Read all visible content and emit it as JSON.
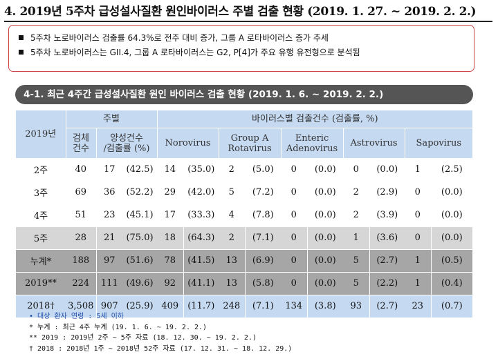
{
  "title": "4. 2019년 5주차 급성설사질환 원인바이러스 주별 검출 현황 (2019. 1. 27. ~ 2019. 2. 2.)",
  "summary": [
    "5주차 노로바이러스 검출률 64.3%로 전주 대비 증가, 그룹 A 로타바이러스 증가 추세",
    "5주차 노로바이러스는 GII.4, 그룹 A 로타바이러스는 G2, P[4]가 주요 유행 유전형으로 분석됨"
  ],
  "section_title": "4-1. 최근 4주간 급성설사질환 원인 바이러스 검출 현황 (2019. 1. 6. ~ 2019. 2. 2.)",
  "table": {
    "head": {
      "year": "2019년",
      "weekly": "주별",
      "virus_group": "바이러스별 검출건수 (검출률, %)",
      "specimens": [
        "검체",
        "건수"
      ],
      "positive": [
        "양성건수",
        "/검출률 (%)"
      ],
      "viruses": [
        [
          "Norovirus"
        ],
        [
          "Group A",
          "Rotavirus"
        ],
        [
          "Enteric",
          "Adenovirus"
        ],
        [
          "Astrovirus"
        ],
        [
          "Sapovirus"
        ]
      ]
    },
    "rows": [
      {
        "label": "2주",
        "style": "white",
        "cells": [
          "40",
          "17",
          "(42.5)",
          "14",
          "(35.0)",
          "2",
          "(5.0)",
          "0",
          "(0.0)",
          "0",
          "(0.0)",
          "1",
          "(2.5)"
        ]
      },
      {
        "label": "3주",
        "style": "white",
        "cells": [
          "69",
          "36",
          "(52.2)",
          "29",
          "(42.0)",
          "5",
          "(7.2)",
          "0",
          "(0.0)",
          "2",
          "(2.9)",
          "0",
          "(0.0)"
        ]
      },
      {
        "label": "4주",
        "style": "white",
        "cells": [
          "51",
          "23",
          "(45.1)",
          "17",
          "(33.3)",
          "4",
          "(7.8)",
          "0",
          "(0.0)",
          "2",
          "(3.9)",
          "0",
          "(0.0)"
        ]
      },
      {
        "label": "5주",
        "style": "lgray",
        "cells": [
          "28",
          "21",
          "(75.0)",
          "18",
          "(64.3)",
          "2",
          "(7.1)",
          "0",
          "(0.0)",
          "1",
          "(3.6)",
          "0",
          "(0.0)"
        ]
      },
      {
        "label": "누계*",
        "style": "dgray",
        "cells": [
          "188",
          "97",
          "(51.6)",
          "78",
          "(41.5)",
          "13",
          "(6.9)",
          "0",
          "(0.0)",
          "5",
          "(2.7)",
          "1",
          "(0.5)"
        ]
      },
      {
        "label": "2019**",
        "style": "dgray",
        "cells": [
          "224",
          "111",
          "(49.6)",
          "92",
          "(41.1)",
          "13",
          "(5.8)",
          "0",
          "(0.0)",
          "5",
          "(2.2)",
          "1",
          "(0.4)"
        ]
      },
      {
        "label": "2018†",
        "style": "blue",
        "cells": [
          "3,508",
          "907",
          "(25.9)",
          "409",
          "(11.7)",
          "248",
          "(7.1)",
          "134",
          "(3.8)",
          "93",
          "(2.7)",
          "23",
          "(0.7)"
        ]
      }
    ]
  },
  "notes": [
    "• 대상 환자 연령 : 5세 이하",
    "* 누계 : 최근 4주 누계 (19. 1. 6. ~ 19. 2. 2.)",
    "** 2019 : 2019년 2주 ~ 5주 자료 (18. 12. 30. ~ 19. 2. 2.)",
    "† 2018 : 2018년 1주 ~ 2018년 52주 자료 (17. 12. 31. ~ 18. 12. 29.)"
  ]
}
